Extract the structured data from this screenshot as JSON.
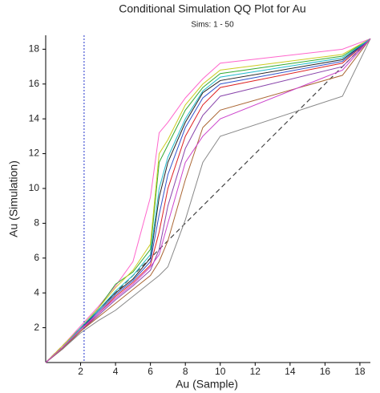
{
  "chart_data": {
    "type": "line",
    "title": "Conditional Simulation QQ Plot for Au",
    "subtitle": "Sims: 1 - 50",
    "x_label": "Au (Sample)",
    "y_label": "Au (Simulation)",
    "x": [
      0,
      1,
      2,
      3,
      4,
      5,
      6,
      6.5,
      7,
      8,
      9,
      10,
      17,
      18.6
    ],
    "series": [
      {
        "color": "#ff66cc",
        "values": [
          0,
          1.0,
          2.1,
          3.2,
          4.4,
          5.8,
          9.5,
          13.2,
          13.8,
          15.2,
          16.3,
          17.2,
          18.0,
          18.6
        ]
      },
      {
        "color": "#33aa33",
        "values": [
          0,
          0.9,
          2.0,
          3.1,
          4.5,
          5.2,
          6.5,
          11.5,
          12.5,
          14.5,
          15.8,
          16.6,
          17.6,
          18.6
        ]
      },
      {
        "color": "#222222",
        "values": [
          0,
          0.9,
          1.9,
          3.0,
          4.0,
          4.8,
          6.0,
          9.5,
          11.5,
          13.8,
          15.5,
          16.2,
          17.4,
          18.6
        ]
      },
      {
        "color": "#dd2222",
        "values": [
          0,
          0.8,
          1.8,
          2.8,
          3.8,
          4.6,
          5.6,
          7.5,
          10,
          13,
          14.8,
          15.8,
          17.2,
          18.6
        ]
      },
      {
        "color": "#3355cc",
        "values": [
          0,
          0.9,
          1.9,
          2.9,
          3.9,
          4.7,
          5.8,
          8.5,
          10.8,
          13.5,
          15.2,
          16,
          17.3,
          18.6
        ]
      },
      {
        "color": "#cccc22",
        "values": [
          0,
          1.0,
          2.0,
          3.1,
          4.3,
          5.3,
          6.8,
          12,
          12.8,
          14.8,
          16,
          16.8,
          17.7,
          18.6
        ]
      },
      {
        "color": "#22bbcc",
        "values": [
          0,
          0.9,
          2.0,
          3.0,
          4.1,
          5.0,
          6.2,
          10,
          11.8,
          14,
          15.6,
          16.4,
          17.5,
          18.6
        ]
      },
      {
        "color": "#8844aa",
        "values": [
          0,
          0.8,
          1.8,
          2.7,
          3.6,
          4.4,
          5.3,
          6.5,
          9,
          12.3,
          14.2,
          15.3,
          17,
          18.6
        ]
      },
      {
        "color": "#888888",
        "values": [
          0,
          0.8,
          1.7,
          2.4,
          3.0,
          3.8,
          4.6,
          5.0,
          5.5,
          8.2,
          11.5,
          13,
          15.3,
          18.6
        ]
      },
      {
        "color": "#aa6633",
        "values": [
          0,
          0.85,
          1.8,
          2.6,
          3.4,
          4.2,
          5.0,
          5.8,
          7,
          10.5,
          13.5,
          14.5,
          16.5,
          18.6
        ]
      },
      {
        "color": "#cc44cc",
        "values": [
          0,
          0.9,
          1.9,
          2.8,
          3.7,
          4.5,
          5.5,
          6.2,
          8,
          11.5,
          13,
          14,
          16.8,
          18.6
        ]
      }
    ],
    "reference_line": {
      "x": [
        0,
        18.6
      ],
      "values": [
        0,
        18.6
      ],
      "color": "#444444"
    },
    "vertical_line": {
      "x": 2.2,
      "color": "#2233cc"
    },
    "xlim": [
      0,
      18.6
    ],
    "ylim": [
      0,
      18.8
    ],
    "xticks": [
      2,
      4,
      6,
      8,
      10,
      12,
      14,
      16,
      18
    ],
    "yticks": [
      2,
      4,
      6,
      8,
      10,
      12,
      14,
      16,
      18
    ]
  }
}
